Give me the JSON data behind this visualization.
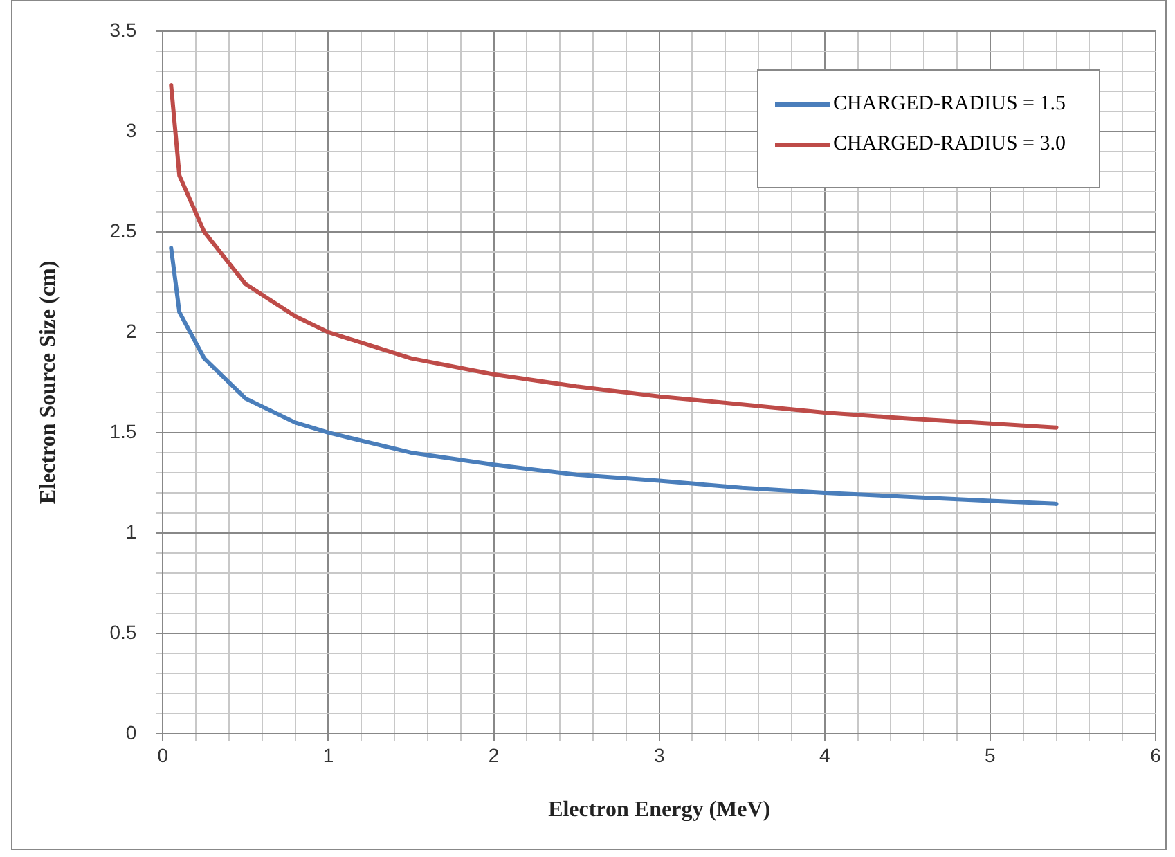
{
  "chart_data": {
    "type": "line",
    "xlabel": "Electron Energy (MeV)",
    "ylabel": "Electron Source Size (cm)",
    "xlim": [
      0,
      6
    ],
    "ylim": [
      0,
      3.5
    ],
    "xticks": [
      0,
      {
        "value": 0.2,
        "label": null
      },
      {
        "value": 0.4,
        "label": null
      },
      {
        "value": 0.6,
        "label": null
      },
      {
        "value": 0.8,
        "label": null
      },
      1,
      {
        "value": 1.2,
        "label": null
      },
      {
        "value": 1.4,
        "label": null
      },
      {
        "value": 1.6,
        "label": null
      },
      {
        "value": 1.8,
        "label": null
      },
      2,
      {
        "value": 2.2,
        "label": null
      },
      {
        "value": 2.4,
        "label": null
      },
      {
        "value": 2.6,
        "label": null
      },
      {
        "value": 2.8,
        "label": null
      },
      3,
      {
        "value": 3.2,
        "label": null
      },
      {
        "value": 3.4,
        "label": null
      },
      {
        "value": 3.6,
        "label": null
      },
      {
        "value": 3.8,
        "label": null
      },
      4,
      {
        "value": 4.2,
        "label": null
      },
      {
        "value": 4.4,
        "label": null
      },
      {
        "value": 4.6,
        "label": null
      },
      {
        "value": 4.8,
        "label": null
      },
      5,
      {
        "value": 5.2,
        "label": null
      },
      {
        "value": 5.4,
        "label": null
      },
      {
        "value": 5.6,
        "label": null
      },
      {
        "value": 5.8,
        "label": null
      },
      6
    ],
    "yticks": [
      0,
      {
        "value": 0.1,
        "label": null
      },
      {
        "value": 0.2,
        "label": null
      },
      {
        "value": 0.3,
        "label": null
      },
      {
        "value": 0.4,
        "label": null
      },
      0.5,
      {
        "value": 0.6,
        "label": null
      },
      {
        "value": 0.7,
        "label": null
      },
      {
        "value": 0.8,
        "label": null
      },
      {
        "value": 0.9,
        "label": null
      },
      1,
      {
        "value": 1.1,
        "label": null
      },
      {
        "value": 1.2,
        "label": null
      },
      {
        "value": 1.3,
        "label": null
      },
      {
        "value": 1.4,
        "label": null
      },
      1.5,
      {
        "value": 1.6,
        "label": null
      },
      {
        "value": 1.7,
        "label": null
      },
      {
        "value": 1.8,
        "label": null
      },
      {
        "value": 1.9,
        "label": null
      },
      2,
      {
        "value": 2.1,
        "label": null
      },
      {
        "value": 2.2,
        "label": null
      },
      {
        "value": 2.3,
        "label": null
      },
      {
        "value": 2.4,
        "label": null
      },
      2.5,
      {
        "value": 2.6,
        "label": null
      },
      {
        "value": 2.7,
        "label": null
      },
      {
        "value": 2.8,
        "label": null
      },
      {
        "value": 2.9,
        "label": null
      },
      3,
      {
        "value": 3.1,
        "label": null
      },
      {
        "value": 3.2,
        "label": null
      },
      {
        "value": 3.3,
        "label": null
      },
      {
        "value": 3.4,
        "label": null
      },
      3.5
    ],
    "x": [
      0.05,
      0.1,
      0.25,
      0.5,
      0.8,
      1,
      1.5,
      2,
      2.5,
      3,
      3.5,
      4,
      4.5,
      5,
      5.4
    ],
    "series": [
      {
        "name": "CHARGED-RADIUS = 1.5",
        "color": "#4a7ebb",
        "values": [
          2.42,
          2.1,
          1.87,
          1.67,
          1.55,
          1.5,
          1.4,
          1.34,
          1.29,
          1.26,
          1.225,
          1.2,
          1.18,
          1.16,
          1.145
        ]
      },
      {
        "name": "CHARGED-RADIUS = 3.0",
        "color": "#be4b48",
        "values": [
          3.23,
          2.78,
          2.5,
          2.24,
          2.08,
          2.0,
          1.87,
          1.79,
          1.73,
          1.68,
          1.64,
          1.6,
          1.57,
          1.545,
          1.525
        ]
      }
    ],
    "grid": true,
    "legend": "top right",
    "marker": "none",
    "line_style": "solid"
  }
}
